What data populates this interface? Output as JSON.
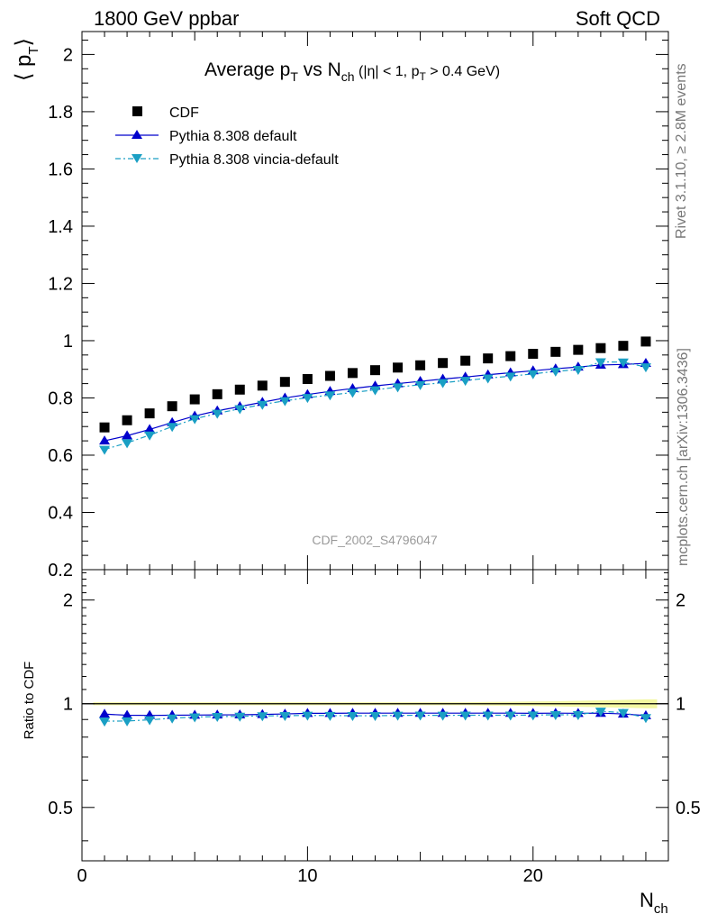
{
  "header": {
    "left": "1800 GeV ppbar",
    "right": "Soft QCD"
  },
  "side": {
    "rivet": "Rivet 3.1.10, ≥ 2.8M events",
    "mcplots": "mcplots.cern.ch [arXiv:1306.3436]"
  },
  "colors": {
    "cdf": "#000000",
    "pythia_default": "#0000cc",
    "vincia": "#1a9fc4",
    "band": "#f2f7a0"
  },
  "chart_data": [
    {
      "type": "scatter",
      "title": "Average p_T vs N_ch (|η| < 1, p_T > 0.4 GeV)",
      "title_parts": {
        "main": "Average p",
        "main_sub": "T",
        "vs": " vs N",
        "vs_sub": "ch",
        "cut_a": " (|η| < 1, p",
        "cut_sub": "T",
        "cut_b": " > 0.4 GeV)"
      },
      "ylabel": "⟨ p_T ⟩",
      "ylabel_parts": {
        "main": "⟨ p",
        "sub": "T",
        "close": "⟩"
      },
      "watermark": "CDF_2002_S4796047",
      "xlim": [
        0,
        26
      ],
      "ylim": [
        0.2,
        2.08
      ],
      "yticks": [
        0.2,
        0.4,
        0.6,
        0.8,
        1,
        1.2,
        1.4,
        1.6,
        1.8,
        2
      ],
      "ytick_labels": [
        "0.2",
        "0.4",
        "0.6",
        "0.8",
        "1",
        "1.2",
        "1.4",
        "1.6",
        "1.8",
        "2"
      ],
      "legend_position": "top-left",
      "x": [
        1,
        2,
        3,
        4,
        5,
        6,
        7,
        8,
        9,
        10,
        11,
        12,
        13,
        14,
        15,
        16,
        17,
        18,
        19,
        20,
        21,
        22,
        23,
        24,
        25
      ],
      "series": [
        {
          "name": "CDF",
          "marker": "square",
          "values": [
            0.697,
            0.722,
            0.746,
            0.771,
            0.795,
            0.813,
            0.829,
            0.843,
            0.856,
            0.866,
            0.877,
            0.887,
            0.897,
            0.906,
            0.914,
            0.922,
            0.93,
            0.938,
            0.946,
            0.954,
            0.961,
            0.968,
            0.974,
            0.982,
            0.997
          ]
        },
        {
          "name": "Pythia 8.308 default",
          "marker": "triangle-up",
          "values": [
            0.65,
            0.668,
            0.69,
            0.714,
            0.737,
            0.755,
            0.77,
            0.785,
            0.8,
            0.812,
            0.823,
            0.833,
            0.842,
            0.85,
            0.858,
            0.866,
            0.873,
            0.881,
            0.888,
            0.895,
            0.902,
            0.908,
            0.915,
            0.917,
            0.921
          ]
        },
        {
          "name": "Pythia 8.308 vincia-default",
          "marker": "triangle-down",
          "values": [
            0.62,
            0.643,
            0.67,
            0.7,
            0.727,
            0.746,
            0.762,
            0.777,
            0.79,
            0.801,
            0.81,
            0.819,
            0.828,
            0.838,
            0.846,
            0.853,
            0.861,
            0.869,
            0.876,
            0.884,
            0.893,
            0.899,
            0.926,
            0.925,
            0.908
          ]
        }
      ]
    },
    {
      "type": "scatter",
      "ylabel": "Ratio to CDF",
      "xlabel": "N_ch",
      "xlabel_parts": {
        "main": "N",
        "sub": "ch"
      },
      "xlim": [
        0,
        26
      ],
      "xticks": [
        0,
        10,
        20
      ],
      "xtick_labels": [
        "0",
        "10",
        "20"
      ],
      "ylim": [
        0.35,
        2.45
      ],
      "ylog": true,
      "yticks": [
        0.5,
        1,
        2
      ],
      "ytick_labels": [
        "0.5",
        "1",
        "2"
      ],
      "x": [
        1,
        2,
        3,
        4,
        5,
        6,
        7,
        8,
        9,
        10,
        11,
        12,
        13,
        14,
        15,
        16,
        17,
        18,
        19,
        20,
        21,
        22,
        23,
        24,
        25
      ],
      "series": [
        {
          "name": "Pythia 8.308 default",
          "marker": "triangle-up",
          "values": [
            0.933,
            0.926,
            0.925,
            0.926,
            0.927,
            0.928,
            0.929,
            0.931,
            0.934,
            0.938,
            0.938,
            0.939,
            0.939,
            0.939,
            0.939,
            0.939,
            0.939,
            0.939,
            0.939,
            0.938,
            0.939,
            0.938,
            0.939,
            0.934,
            0.924
          ]
        },
        {
          "name": "Pythia 8.308 vincia-default",
          "marker": "triangle-down",
          "values": [
            0.89,
            0.891,
            0.898,
            0.908,
            0.915,
            0.918,
            0.919,
            0.922,
            0.923,
            0.925,
            0.924,
            0.923,
            0.923,
            0.925,
            0.926,
            0.925,
            0.926,
            0.926,
            0.926,
            0.927,
            0.929,
            0.929,
            0.951,
            0.942,
            0.911
          ]
        }
      ],
      "band": {
        "lower": [
          0.99,
          0.99,
          0.99,
          0.99,
          0.99,
          0.99,
          0.99,
          0.99,
          0.99,
          0.99,
          0.99,
          0.99,
          0.99,
          0.99,
          0.99,
          0.99,
          0.99,
          0.988,
          0.987,
          0.985,
          0.983,
          0.98,
          0.977,
          0.974,
          0.97
        ],
        "upper": [
          1.01,
          1.01,
          1.01,
          1.01,
          1.01,
          1.01,
          1.01,
          1.01,
          1.01,
          1.01,
          1.01,
          1.01,
          1.01,
          1.01,
          1.01,
          1.01,
          1.01,
          1.012,
          1.013,
          1.015,
          1.017,
          1.02,
          1.023,
          1.026,
          1.03
        ]
      }
    }
  ]
}
